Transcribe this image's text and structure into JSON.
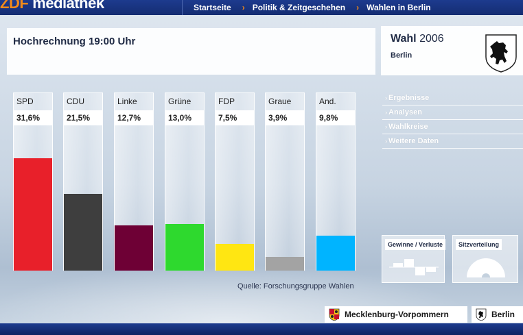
{
  "header": {
    "logo_brand": "ZDF",
    "logo_text": "mediathek",
    "breadcrumbs": [
      "Startseite",
      "Politik & Zeitgeschehen",
      "Wahlen in Berlin"
    ],
    "separator": "›"
  },
  "main": {
    "title": "Hochrechnung 19:00 Uhr",
    "source": "Quelle: Forschungsgruppe Wahlen"
  },
  "chart_data": {
    "type": "bar",
    "title": "Hochrechnung 19:00 Uhr",
    "categories": [
      "SPD",
      "CDU",
      "Linke",
      "Grüne",
      "FDP",
      "Graue",
      "And."
    ],
    "values": [
      31.6,
      21.5,
      12.7,
      13.0,
      7.5,
      3.9,
      9.8
    ],
    "value_labels": [
      "31,6%",
      "21,5%",
      "12,7%",
      "13,0%",
      "7,5%",
      "3,9%",
      "9,8%"
    ],
    "colors": [
      "#e8202a",
      "#3e3e3e",
      "#6e0035",
      "#2ed92e",
      "#ffe612",
      "#a3a3a3",
      "#00b4ff"
    ],
    "ylim": [
      0,
      40
    ],
    "grid": false,
    "legend": "none"
  },
  "sidebar": {
    "title_bold": "Wahl",
    "title_year": "2006",
    "subtitle": "Berlin",
    "menu": [
      "Ergebnisse",
      "Analysen",
      "Wahlkreise",
      "Weitere Daten"
    ],
    "menu_arrow": "›",
    "widgets": [
      "Gewinne / Verluste",
      "Sitzverteilung"
    ]
  },
  "footer": {
    "states": [
      "Mecklenburg-Vorpommern",
      "Berlin"
    ]
  },
  "colors": {
    "nav_bg": "#142c72",
    "accent": "#f28a1a"
  }
}
